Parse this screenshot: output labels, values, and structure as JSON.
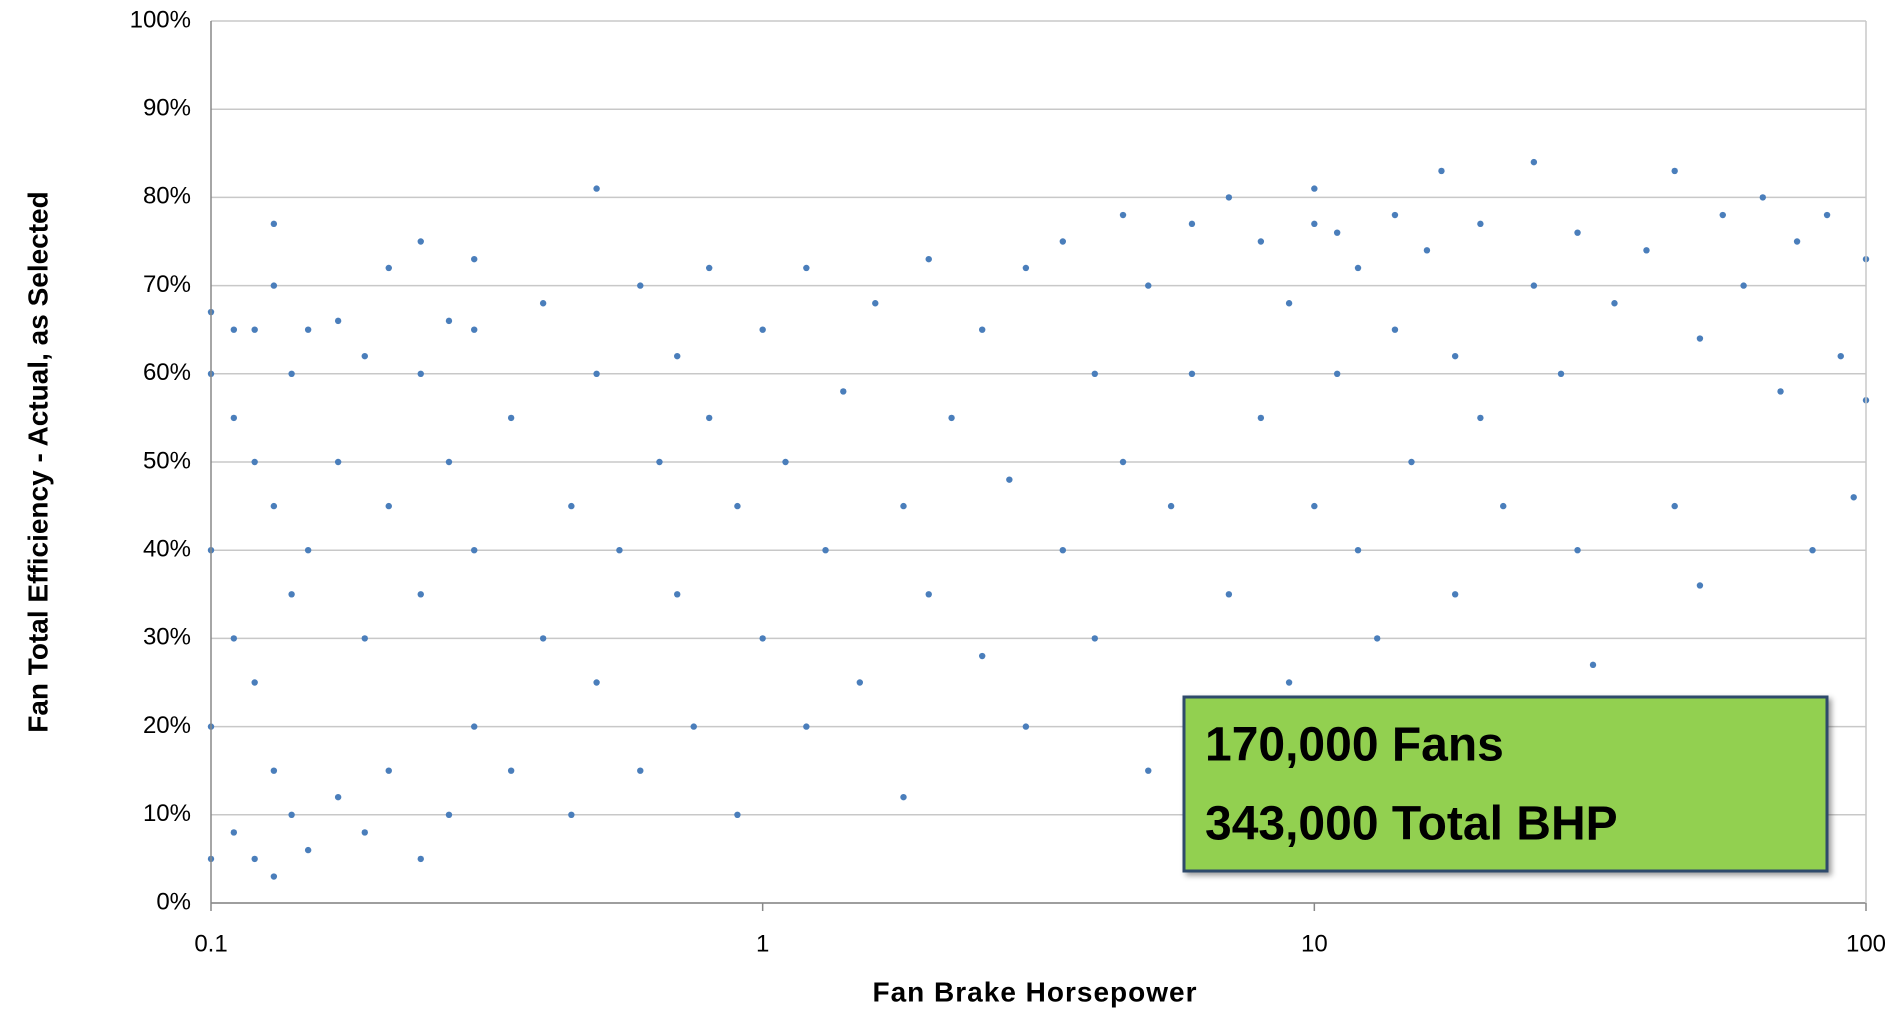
{
  "chart_data": {
    "type": "scatter",
    "x_label": "Fan Brake Horsepower",
    "y_label": "Fan Total Efficiency - Actual, as Selected",
    "annotations": [
      "170,000 Fans",
      "343,000 Total BHP"
    ],
    "color": "#4a7ebb",
    "xlog": true,
    "grid": true,
    "xlim": [
      0.1,
      100
    ],
    "xticks": [
      0.1,
      1,
      10,
      100
    ],
    "ylim": [
      0,
      100
    ],
    "yticks": [
      {
        "value": 0,
        "label": "0%"
      },
      {
        "value": 10,
        "label": "10%"
      },
      {
        "value": 20,
        "label": "20%"
      },
      {
        "value": 30,
        "label": "30%"
      },
      {
        "value": 40,
        "label": "40%"
      },
      {
        "value": 50,
        "label": "50%"
      },
      {
        "value": 60,
        "label": "60%"
      },
      {
        "value": 70,
        "label": "70%"
      },
      {
        "value": 80,
        "label": "80%"
      },
      {
        "value": 90,
        "label": "90%"
      },
      {
        "value": 100,
        "label": "100%"
      }
    ],
    "x": [
      0.1,
      0.1,
      0.1,
      0.1,
      0.1,
      0.11,
      0.11,
      0.11,
      0.11,
      0.12,
      0.12,
      0.12,
      0.12,
      0.13,
      0.13,
      0.13,
      0.13,
      0.13,
      0.14,
      0.14,
      0.14,
      0.15,
      0.15,
      0.15,
      0.17,
      0.17,
      0.17,
      0.19,
      0.19,
      0.19,
      0.21,
      0.21,
      0.21,
      0.24,
      0.24,
      0.24,
      0.24,
      0.27,
      0.27,
      0.27,
      0.3,
      0.3,
      0.3,
      0.3,
      0.35,
      0.35,
      0.4,
      0.4,
      0.45,
      0.45,
      0.5,
      0.5,
      0.5,
      0.55,
      0.6,
      0.6,
      0.65,
      0.7,
      0.7,
      0.75,
      0.8,
      0.8,
      0.9,
      0.9,
      1,
      1,
      1.1,
      1.2,
      1.2,
      1.3,
      1.4,
      1.5,
      1.6,
      1.8,
      1.8,
      2,
      2,
      2.2,
      2.5,
      2.5,
      2.8,
      3,
      3,
      3.5,
      3.5,
      4,
      4,
      4.5,
      4.5,
      5,
      5,
      5.5,
      6,
      6,
      7,
      7,
      8,
      8,
      9,
      9,
      10,
      10,
      10,
      11,
      11,
      12,
      12,
      13,
      14,
      14,
      15,
      16,
      17,
      18,
      18,
      20,
      20,
      22,
      25,
      25,
      25,
      28,
      30,
      30,
      32,
      35,
      40,
      45,
      45,
      50,
      50,
      55,
      60,
      65,
      70,
      75,
      80,
      85,
      90,
      95,
      100,
      100
    ],
    "values": [
      5,
      20,
      40,
      60,
      67,
      8,
      30,
      55,
      65,
      5,
      25,
      50,
      65,
      3,
      15,
      45,
      70,
      77,
      10,
      35,
      60,
      6,
      40,
      65,
      12,
      50,
      66,
      8,
      30,
      62,
      15,
      45,
      72,
      5,
      35,
      60,
      75,
      10,
      50,
      66,
      20,
      40,
      65,
      73,
      15,
      55,
      30,
      68,
      10,
      45,
      25,
      60,
      81,
      40,
      15,
      70,
      50,
      35,
      62,
      20,
      55,
      72,
      10,
      45,
      30,
      65,
      50,
      20,
      72,
      40,
      58,
      25,
      68,
      45,
      12,
      35,
      73,
      55,
      28,
      65,
      48,
      20,
      72,
      40,
      75,
      30,
      60,
      50,
      78,
      15,
      70,
      45,
      77,
      60,
      35,
      80,
      55,
      75,
      25,
      68,
      45,
      77,
      81,
      60,
      76,
      40,
      72,
      30,
      65,
      78,
      50,
      74,
      83,
      35,
      62,
      77,
      55,
      45,
      20,
      84,
      70,
      60,
      40,
      76,
      27,
      68,
      74,
      45,
      83,
      64,
      36,
      78,
      70,
      80,
      58,
      75,
      40,
      78,
      62,
      46,
      57,
      73
    ]
  }
}
